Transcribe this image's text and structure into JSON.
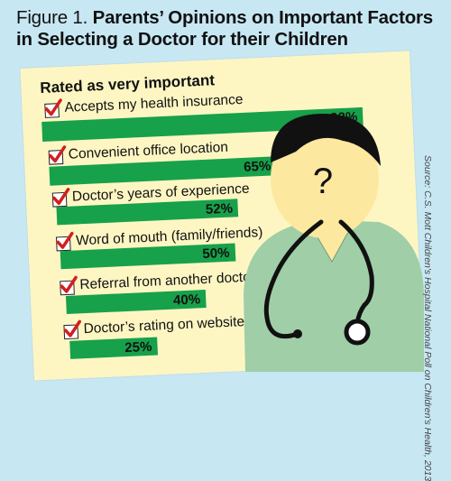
{
  "title_prefix": "Figure 1.",
  "title_main": "Parents’ Opinions on Important Factors in Selecting a Doctor for their Children",
  "subheading": "Rated as very important",
  "source": "Source: C.S. Mott Children's Hospital National Poll on Children's Health, 2013",
  "doctor_glyph": "?",
  "colors": {
    "background": "#c7e7f3",
    "card": "#fdf6c3",
    "bar": "#17a14a",
    "check": "#d11f1f",
    "coat": "#9fcea7",
    "face": "#fde8a0"
  },
  "chart_data": {
    "type": "bar",
    "title": "Parents’ Opinions on Important Factors in Selecting a Doctor for their Children",
    "subtitle": "Rated as very important",
    "categories": [
      "Accepts my health insurance",
      "Convenient office location",
      "Doctor’s years of experience",
      "Word of mouth (family/friends)",
      "Referral from another doctor",
      "Doctor’s rating on websites"
    ],
    "values": [
      92,
      65,
      52,
      50,
      40,
      25
    ],
    "value_labels": [
      "92%",
      "65%",
      "52%",
      "50%",
      "40%",
      "25%"
    ],
    "xlim": [
      0,
      100
    ],
    "orientation": "horizontal"
  }
}
